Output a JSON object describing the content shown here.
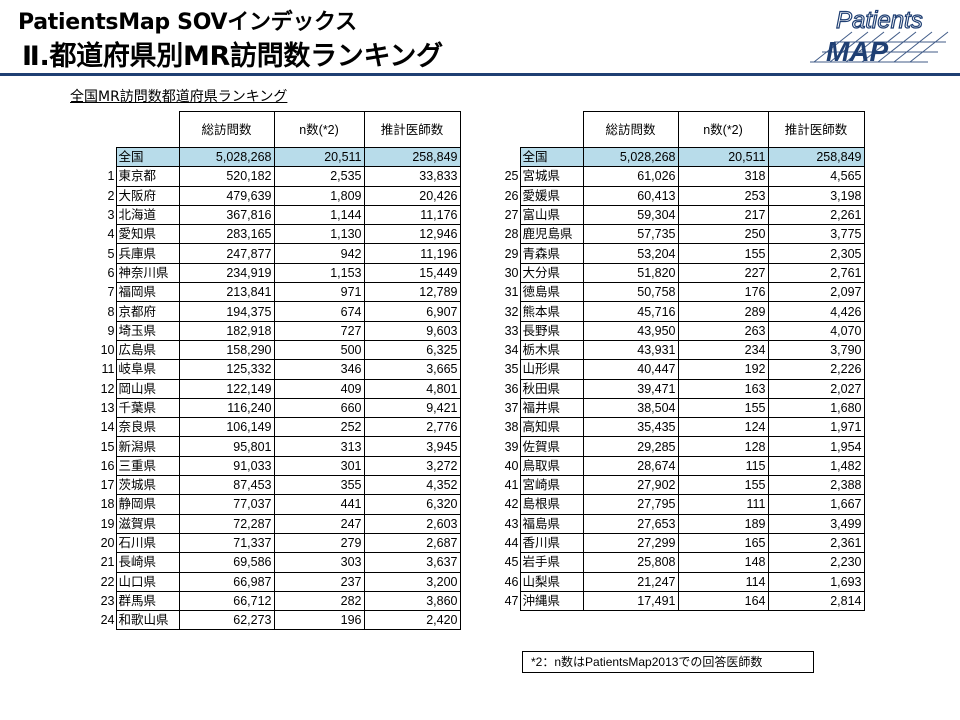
{
  "header": {
    "title_line1": "PatientsMap SOVインデックス",
    "title_line2": "Ⅱ.都道府県別MR訪問数ランキング",
    "logo_text_top": "Patients",
    "logo_text_bottom": "MAP"
  },
  "subtitle": "全国MR訪問数都道府県ランキング",
  "columns": [
    "総訪問数",
    "n数(*2)",
    "推計医師数"
  ],
  "total": {
    "name": "全国",
    "visits": "5,028,268",
    "n": "20,511",
    "doctors": "258,849"
  },
  "left_table": [
    {
      "rank": "1",
      "name": "東京都",
      "visits": "520,182",
      "n": "2,535",
      "doctors": "33,833"
    },
    {
      "rank": "2",
      "name": "大阪府",
      "visits": "479,639",
      "n": "1,809",
      "doctors": "20,426"
    },
    {
      "rank": "3",
      "name": "北海道",
      "visits": "367,816",
      "n": "1,144",
      "doctors": "11,176"
    },
    {
      "rank": "4",
      "name": "愛知県",
      "visits": "283,165",
      "n": "1,130",
      "doctors": "12,946"
    },
    {
      "rank": "5",
      "name": "兵庫県",
      "visits": "247,877",
      "n": "942",
      "doctors": "11,196"
    },
    {
      "rank": "6",
      "name": "神奈川県",
      "visits": "234,919",
      "n": "1,153",
      "doctors": "15,449"
    },
    {
      "rank": "7",
      "name": "福岡県",
      "visits": "213,841",
      "n": "971",
      "doctors": "12,789"
    },
    {
      "rank": "8",
      "name": "京都府",
      "visits": "194,375",
      "n": "674",
      "doctors": "6,907"
    },
    {
      "rank": "9",
      "name": "埼玉県",
      "visits": "182,918",
      "n": "727",
      "doctors": "9,603"
    },
    {
      "rank": "10",
      "name": "広島県",
      "visits": "158,290",
      "n": "500",
      "doctors": "6,325"
    },
    {
      "rank": "11",
      "name": "岐阜県",
      "visits": "125,332",
      "n": "346",
      "doctors": "3,665"
    },
    {
      "rank": "12",
      "name": "岡山県",
      "visits": "122,149",
      "n": "409",
      "doctors": "4,801"
    },
    {
      "rank": "13",
      "name": "千葉県",
      "visits": "116,240",
      "n": "660",
      "doctors": "9,421"
    },
    {
      "rank": "14",
      "name": "奈良県",
      "visits": "106,149",
      "n": "252",
      "doctors": "2,776"
    },
    {
      "rank": "15",
      "name": "新潟県",
      "visits": "95,801",
      "n": "313",
      "doctors": "3,945"
    },
    {
      "rank": "16",
      "name": "三重県",
      "visits": "91,033",
      "n": "301",
      "doctors": "3,272"
    },
    {
      "rank": "17",
      "name": "茨城県",
      "visits": "87,453",
      "n": "355",
      "doctors": "4,352"
    },
    {
      "rank": "18",
      "name": "静岡県",
      "visits": "77,037",
      "n": "441",
      "doctors": "6,320"
    },
    {
      "rank": "19",
      "name": "滋賀県",
      "visits": "72,287",
      "n": "247",
      "doctors": "2,603"
    },
    {
      "rank": "20",
      "name": "石川県",
      "visits": "71,337",
      "n": "279",
      "doctors": "2,687"
    },
    {
      "rank": "21",
      "name": "長崎県",
      "visits": "69,586",
      "n": "303",
      "doctors": "3,637"
    },
    {
      "rank": "22",
      "name": "山口県",
      "visits": "66,987",
      "n": "237",
      "doctors": "3,200"
    },
    {
      "rank": "23",
      "name": "群馬県",
      "visits": "66,712",
      "n": "282",
      "doctors": "3,860"
    },
    {
      "rank": "24",
      "name": "和歌山県",
      "visits": "62,273",
      "n": "196",
      "doctors": "2,420"
    }
  ],
  "right_table": [
    {
      "rank": "25",
      "name": "宮城県",
      "visits": "61,026",
      "n": "318",
      "doctors": "4,565"
    },
    {
      "rank": "26",
      "name": "愛媛県",
      "visits": "60,413",
      "n": "253",
      "doctors": "3,198"
    },
    {
      "rank": "27",
      "name": "富山県",
      "visits": "59,304",
      "n": "217",
      "doctors": "2,261"
    },
    {
      "rank": "28",
      "name": "鹿児島県",
      "visits": "57,735",
      "n": "250",
      "doctors": "3,775"
    },
    {
      "rank": "29",
      "name": "青森県",
      "visits": "53,204",
      "n": "155",
      "doctors": "2,305"
    },
    {
      "rank": "30",
      "name": "大分県",
      "visits": "51,820",
      "n": "227",
      "doctors": "2,761"
    },
    {
      "rank": "31",
      "name": "徳島県",
      "visits": "50,758",
      "n": "176",
      "doctors": "2,097"
    },
    {
      "rank": "32",
      "name": "熊本県",
      "visits": "45,716",
      "n": "289",
      "doctors": "4,426"
    },
    {
      "rank": "33",
      "name": "長野県",
      "visits": "43,950",
      "n": "263",
      "doctors": "4,070"
    },
    {
      "rank": "34",
      "name": "栃木県",
      "visits": "43,931",
      "n": "234",
      "doctors": "3,790"
    },
    {
      "rank": "35",
      "name": "山形県",
      "visits": "40,447",
      "n": "192",
      "doctors": "2,226"
    },
    {
      "rank": "36",
      "name": "秋田県",
      "visits": "39,471",
      "n": "163",
      "doctors": "2,027"
    },
    {
      "rank": "37",
      "name": "福井県",
      "visits": "38,504",
      "n": "155",
      "doctors": "1,680"
    },
    {
      "rank": "38",
      "name": "高知県",
      "visits": "35,435",
      "n": "124",
      "doctors": "1,971"
    },
    {
      "rank": "39",
      "name": "佐賀県",
      "visits": "29,285",
      "n": "128",
      "doctors": "1,954"
    },
    {
      "rank": "40",
      "name": "鳥取県",
      "visits": "28,674",
      "n": "115",
      "doctors": "1,482"
    },
    {
      "rank": "41",
      "name": "宮崎県",
      "visits": "27,902",
      "n": "155",
      "doctors": "2,388"
    },
    {
      "rank": "42",
      "name": "島根県",
      "visits": "27,795",
      "n": "111",
      "doctors": "1,667"
    },
    {
      "rank": "43",
      "name": "福島県",
      "visits": "27,653",
      "n": "189",
      "doctors": "3,499"
    },
    {
      "rank": "44",
      "name": "香川県",
      "visits": "27,299",
      "n": "165",
      "doctors": "2,361"
    },
    {
      "rank": "45",
      "name": "岩手県",
      "visits": "25,808",
      "n": "148",
      "doctors": "2,230"
    },
    {
      "rank": "46",
      "name": "山梨県",
      "visits": "21,247",
      "n": "114",
      "doctors": "1,693"
    },
    {
      "rank": "47",
      "name": "沖縄県",
      "visits": "17,491",
      "n": "164",
      "doctors": "2,814"
    }
  ],
  "note": "*2：n数はPatientsMap2013での回答医師数",
  "colors": {
    "total_row": "#b8dcea",
    "rule": "#1f3f73",
    "logo": "#1f3f73"
  }
}
